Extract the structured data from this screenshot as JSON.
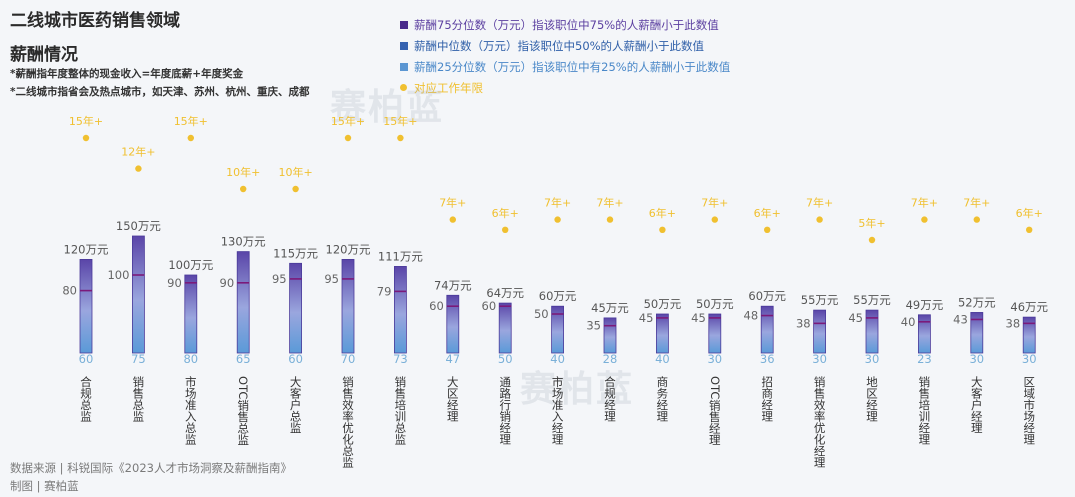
{
  "header": {
    "title_line1": "二线城市医药销售领域",
    "title_line2": "薪酬情况",
    "note1": "*薪酬指年度整体的现金收入=年度底薪+年度奖金",
    "note2": "*二线城市指省会及热点城市，如天津、苏州、杭州、重庆、成都"
  },
  "legend": {
    "p75": "薪酬75分位数（万元）指该职位中75%的人薪酬小于此数值",
    "p50": "薪酬中位数（万元）指该职位中50%的人薪酬小于此数值",
    "p25": "薪酬25分位数（万元）指该职位中有25%的人薪酬小于此数值",
    "years": "对应工作年限"
  },
  "footer": {
    "source": "数据来源 | 科锐国际《2023人才市场洞察及薪酬指南》",
    "made_by": "制图 | 赛柏蓝"
  },
  "watermark": "赛柏蓝",
  "colors": {
    "p75_text": "#5b3fa0",
    "p75_swatch": "#4a2a8c",
    "p50_text": "#2f5fa8",
    "p50_swatch": "#3562b0",
    "p25_text": "#4a88c8",
    "p25_swatch": "#5b96d2",
    "years_dot": "#f0c030",
    "median_line": "#7b1a7a",
    "bar_top": "#5a45a8",
    "bar_mid": "#9aa6de",
    "bar_bottom": "#5a9ad8"
  },
  "chart_data": {
    "type": "bar",
    "unit_label": "万元",
    "categories": [
      "合规总监",
      "销售总监",
      "市场准入总监",
      "OTC销售总监",
      "大客户总监",
      "销售效率优化总监",
      "销售培训总监",
      "大区经理",
      "通路行销经理",
      "市场准入经理",
      "合规经理",
      "商务经理",
      "OTC销售经理",
      "招商经理",
      "销售效率优化经理",
      "地区经理",
      "销售培训经理",
      "大客户经理",
      "区域市场经理"
    ],
    "series": [
      {
        "name": "薪酬75分位数（万元）",
        "values": [
          120,
          150,
          100,
          130,
          115,
          120,
          111,
          74,
          64,
          60,
          45,
          50,
          50,
          60,
          55,
          55,
          49,
          52,
          46
        ]
      },
      {
        "name": "薪酬中位数（万元）",
        "values": [
          80,
          100,
          90,
          90,
          95,
          95,
          79,
          60,
          60,
          50,
          35,
          45,
          45,
          48,
          38,
          45,
          40,
          43,
          38
        ]
      },
      {
        "name": "薪酬25分位数（万元）",
        "values": [
          60,
          75,
          80,
          65,
          60,
          70,
          73,
          47,
          50,
          40,
          28,
          40,
          30,
          36,
          30,
          30,
          23,
          30,
          30
        ]
      }
    ],
    "years": [
      "15年+",
      "12年+",
      "15年+",
      "10年+",
      "10年+",
      "15年+",
      "15年+",
      "7年+",
      "6年+",
      "7年+",
      "7年+",
      "6年+",
      "7年+",
      "6年+",
      "7年+",
      "5年+",
      "7年+",
      "7年+",
      "6年+"
    ],
    "p75_labels": [
      "120万元",
      "150万元",
      "100万元",
      "130万元",
      "115万元",
      "120万元",
      "111万元",
      "74万元",
      "64万元",
      "60万元",
      "45万元",
      "50万元",
      "50万元",
      "60万元",
      "55万元",
      "55万元",
      "49万元",
      "52万元",
      "46万元"
    ],
    "x_label_texts": [
      "合规总监",
      "销售总监",
      "市场准入总监",
      "OTC销售总监",
      "大客户总监",
      "销售效率优化总监",
      "销售培训总监",
      "大区经理",
      "通路行销经理",
      "市场准入经理",
      "合规经理",
      "商务经理",
      "OTC销售经理",
      "招商经理",
      "销售效率优化经理",
      "地区经理",
      "销售培训经理",
      "大客户经理",
      "区域市场经理"
    ],
    "legend_position": "top-right",
    "grid": false
  }
}
